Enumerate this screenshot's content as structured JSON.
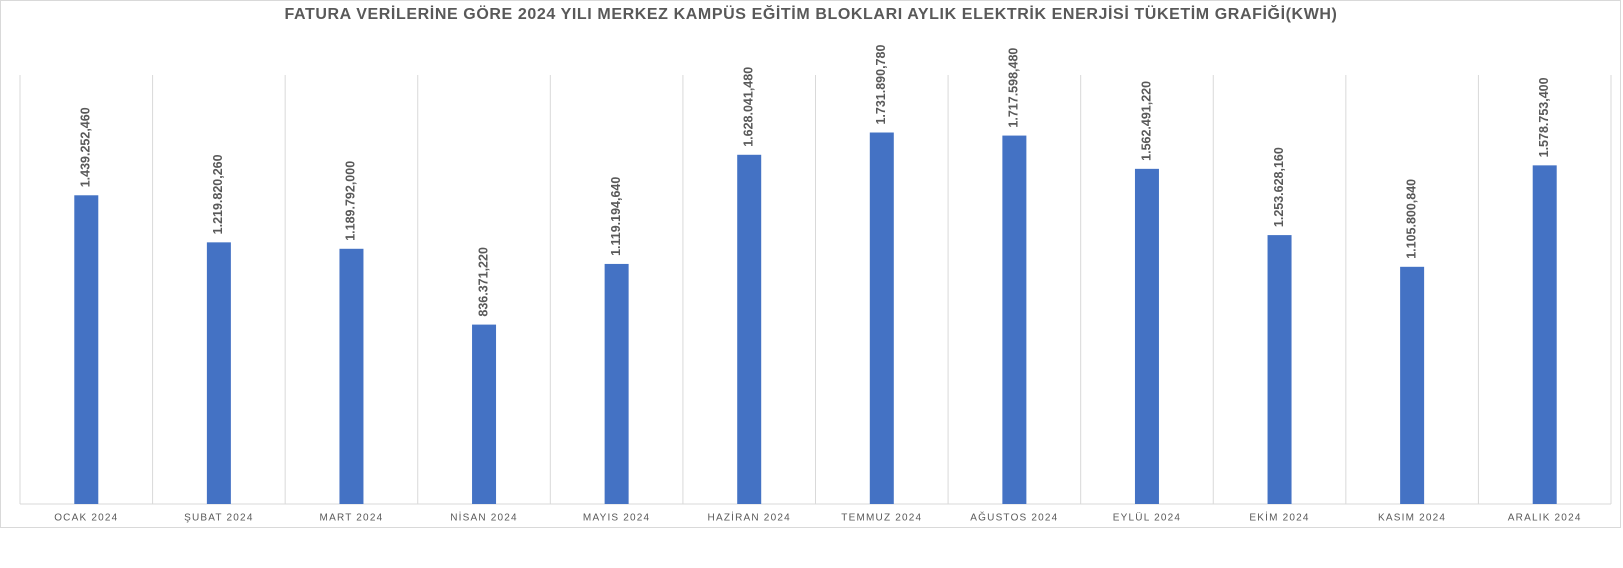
{
  "chart_data": {
    "type": "bar",
    "title": "FATURA VERİLERİNE GÖRE 2024 YILI MERKEZ KAMPÜS EĞİTİM BLOKLARI AYLIK ELEKTRİK ENERJİSİ TÜKETİM GRAFİĞİ(KWH)",
    "categories": [
      "OCAK 2024",
      "ŞUBAT 2024",
      "MART 2024",
      "NİSAN 2024",
      "MAYIS 2024",
      "HAZİRAN 2024",
      "TEMMUZ 2024",
      "AĞUSTOS 2024",
      "EYLÜL 2024",
      "EKİM 2024",
      "KASIM 2024",
      "ARALIK 2024"
    ],
    "values": [
      1439252.46,
      1219820.26,
      1189792.0,
      836371.22,
      1119194.64,
      1628041.48,
      1731890.78,
      1717598.48,
      1562491.22,
      1253628.16,
      1105800.84,
      1578753.4
    ],
    "value_labels": [
      "1.439.252,460",
      "1.219.820,260",
      "1.189.792,000",
      "836.371,220",
      "1.119.194,640",
      "1.628.041,480",
      "1.731.890,780",
      "1.717.598,480",
      "1.562.491,220",
      "1.253.628,160",
      "1.105.800,840",
      "1.578.753,400"
    ],
    "color": "#4472c4",
    "ylim": [
      0,
      2000000
    ]
  }
}
